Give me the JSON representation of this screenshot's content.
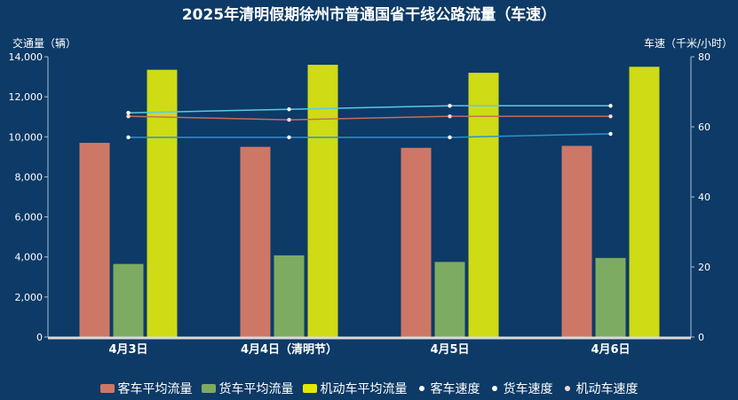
{
  "title": "2025年清明假期徐州市普通国省干线公路流量（车速）",
  "chart_data": {
    "type": "bar",
    "title": "2025年清明假期徐州市普通国省干线公路流量（车速）",
    "ylabel_left": "交通量（辆）",
    "ylabel_right": "车速（千米/小时）",
    "categories": [
      "4月3日",
      "4月4日（清明节）",
      "4月5日",
      "4月6日"
    ],
    "ylim_left": [
      0,
      14000
    ],
    "yticks_left": [
      "0",
      "2,000",
      "4,000",
      "6,000",
      "8,000",
      "10,000",
      "12,000",
      "14,000"
    ],
    "ylim_right": [
      0,
      80
    ],
    "yticks_right": [
      "0",
      "20",
      "40",
      "60",
      "80"
    ],
    "bar_series": [
      {
        "name": "客车平均流量",
        "color": "#cd7866",
        "values": [
          9700,
          9500,
          9450,
          9550
        ]
      },
      {
        "name": "货车平均流量",
        "color": "#7eab62",
        "values": [
          3650,
          4080,
          3750,
          3950
        ]
      },
      {
        "name": "机动车平均流量",
        "color": "#cedb13",
        "values": [
          13350,
          13600,
          13200,
          13500
        ]
      }
    ],
    "line_series": [
      {
        "name": "客车速度",
        "color": "#5bc8ea",
        "values": [
          64,
          65,
          66,
          66
        ]
      },
      {
        "name": "货车速度",
        "color": "#2f8fd0",
        "values": [
          57,
          57,
          57,
          58
        ]
      },
      {
        "name": "机动车速度",
        "color": "#c86c5c",
        "values": [
          63,
          62,
          63,
          63
        ]
      }
    ],
    "grid": false,
    "legend": "bottom-center"
  }
}
